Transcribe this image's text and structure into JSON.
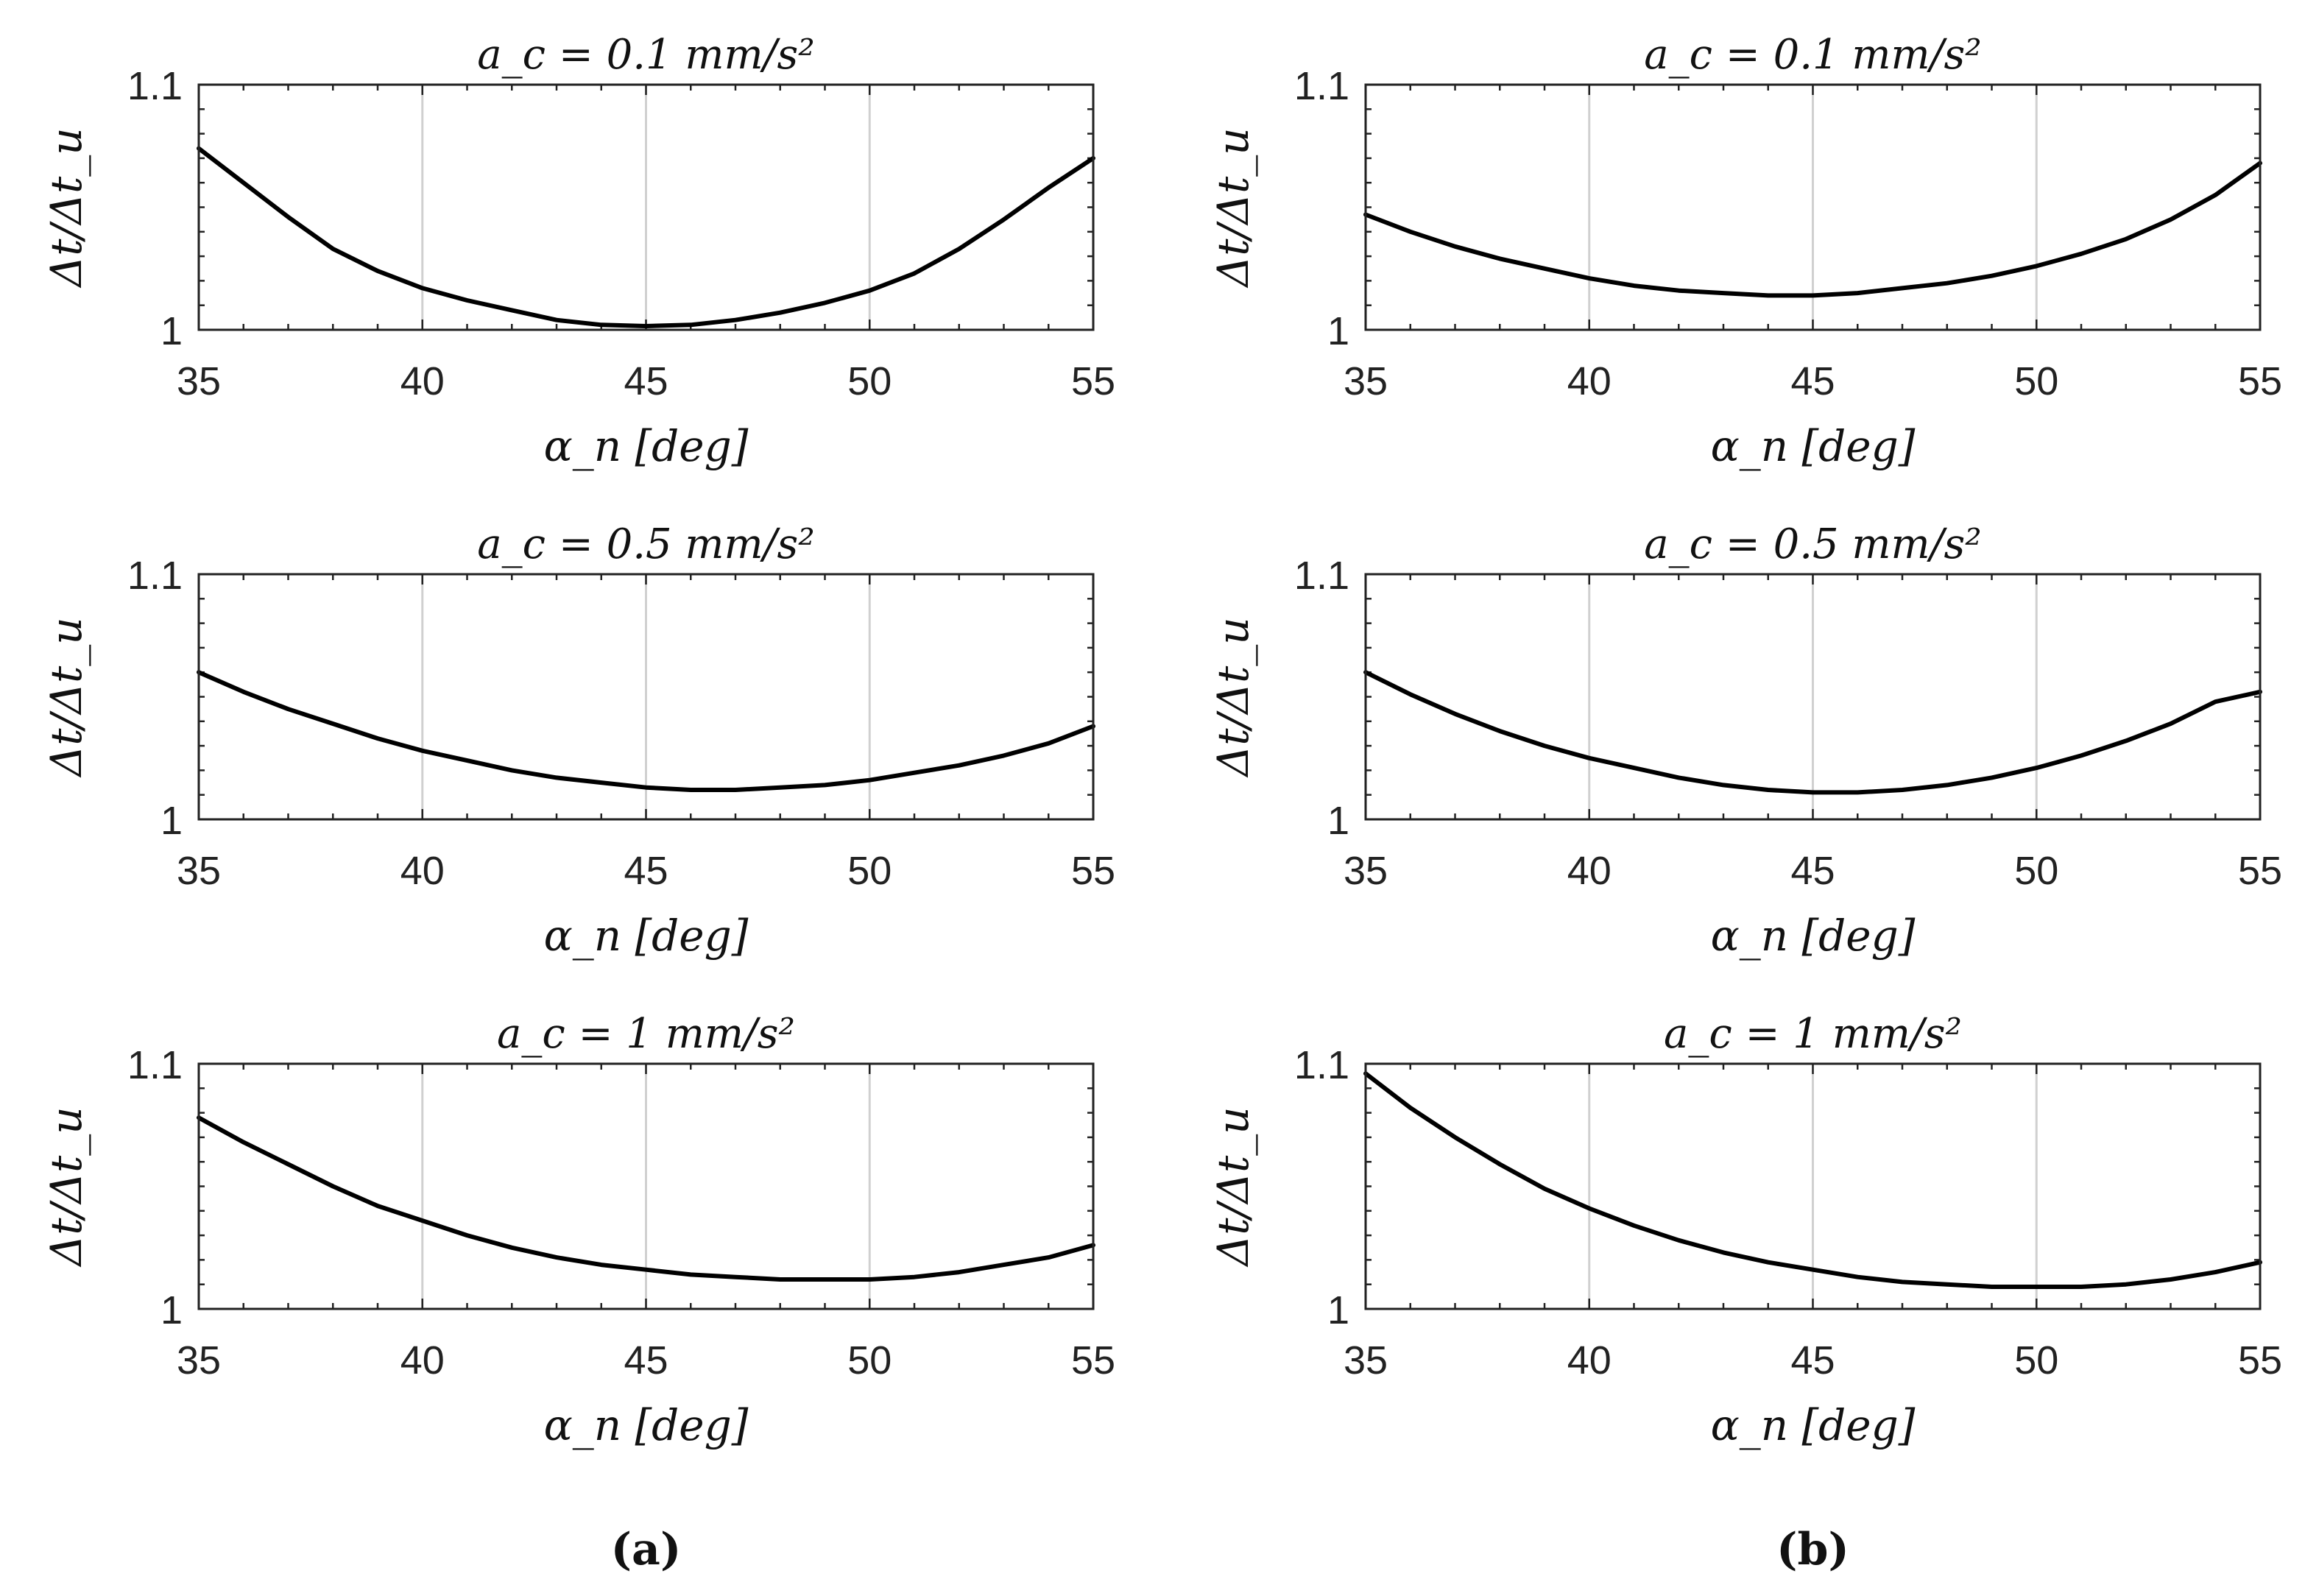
{
  "chart_data": [
    {
      "type": "line",
      "column": "a",
      "row": 0,
      "title": "a_c = 0.1 mm/s²",
      "xlabel": "α_n [deg]",
      "ylabel": "Δt/Δt_u",
      "xlim": [
        35,
        55
      ],
      "ylim": [
        1,
        1.1
      ],
      "xticks": [
        35,
        40,
        45,
        50,
        55
      ],
      "yticks": [
        1,
        1.1
      ],
      "grid": "x",
      "series": [
        {
          "name": "a",
          "x": [
            35,
            37,
            38,
            39,
            40,
            41,
            42,
            43,
            44,
            45,
            46,
            47,
            48,
            49,
            50,
            51,
            52,
            53,
            54,
            55
          ],
          "y": [
            1.074,
            1.046,
            1.033,
            1.024,
            1.017,
            1.012,
            1.008,
            1.004,
            1.002,
            1.0015,
            1.002,
            1.004,
            1.007,
            1.011,
            1.016,
            1.023,
            1.033,
            1.045,
            1.058,
            1.07
          ]
        }
      ]
    },
    {
      "type": "line",
      "column": "a",
      "row": 1,
      "title": "a_c = 0.5 mm/s²",
      "xlabel": "α_n [deg]",
      "ylabel": "Δt/Δt_u",
      "xlim": [
        35,
        55
      ],
      "ylim": [
        1,
        1.1
      ],
      "xticks": [
        35,
        40,
        45,
        50,
        55
      ],
      "yticks": [
        1,
        1.1
      ],
      "grid": "x",
      "series": [
        {
          "name": "a",
          "x": [
            35,
            36,
            37,
            38,
            39,
            40,
            41,
            42,
            43,
            44,
            45,
            46,
            47,
            48,
            49,
            50,
            51,
            52,
            53,
            54,
            55
          ],
          "y": [
            1.06,
            1.052,
            1.045,
            1.039,
            1.033,
            1.028,
            1.024,
            1.02,
            1.017,
            1.015,
            1.013,
            1.012,
            1.012,
            1.013,
            1.014,
            1.016,
            1.019,
            1.022,
            1.026,
            1.031,
            1.038
          ]
        }
      ]
    },
    {
      "type": "line",
      "column": "a",
      "row": 2,
      "title": "a_c = 1 mm/s²",
      "xlabel": "α_n [deg]",
      "ylabel": "Δt/Δt_u",
      "xlim": [
        35,
        55
      ],
      "ylim": [
        1,
        1.1
      ],
      "xticks": [
        35,
        40,
        45,
        50,
        55
      ],
      "yticks": [
        1,
        1.1
      ],
      "grid": "x",
      "series": [
        {
          "name": "a",
          "x": [
            35,
            36,
            37,
            38,
            39,
            40,
            41,
            42,
            43,
            44,
            45,
            46,
            47,
            48,
            49,
            50,
            51,
            52,
            53,
            54,
            55
          ],
          "y": [
            1.078,
            1.068,
            1.059,
            1.05,
            1.042,
            1.036,
            1.03,
            1.025,
            1.021,
            1.018,
            1.016,
            1.014,
            1.013,
            1.012,
            1.012,
            1.012,
            1.013,
            1.015,
            1.018,
            1.021,
            1.026
          ]
        }
      ]
    },
    {
      "type": "line",
      "column": "b",
      "row": 0,
      "title": "a_c = 0.1 mm/s²",
      "xlabel": "α_n [deg]",
      "ylabel": "Δt/Δt_u",
      "xlim": [
        35,
        55
      ],
      "ylim": [
        1,
        1.1
      ],
      "xticks": [
        35,
        40,
        45,
        50,
        55
      ],
      "yticks": [
        1,
        1.1
      ],
      "grid": "x",
      "series": [
        {
          "name": "b",
          "x": [
            35,
            36,
            37,
            38,
            39,
            40,
            41,
            42,
            43,
            44,
            45,
            46,
            47,
            48,
            49,
            50,
            51,
            52,
            53,
            54,
            55
          ],
          "y": [
            1.047,
            1.04,
            1.034,
            1.029,
            1.025,
            1.021,
            1.018,
            1.016,
            1.015,
            1.014,
            1.014,
            1.015,
            1.017,
            1.019,
            1.022,
            1.026,
            1.031,
            1.037,
            1.045,
            1.055,
            1.068
          ]
        }
      ]
    },
    {
      "type": "line",
      "column": "b",
      "row": 1,
      "title": "a_c = 0.5 mm/s²",
      "xlabel": "α_n [deg]",
      "ylabel": "Δt/Δt_u",
      "xlim": [
        35,
        55
      ],
      "ylim": [
        1,
        1.1
      ],
      "xticks": [
        35,
        40,
        45,
        50,
        55
      ],
      "yticks": [
        1,
        1.1
      ],
      "grid": "x",
      "series": [
        {
          "name": "b",
          "x": [
            35,
            36,
            37,
            38,
            39,
            40,
            41,
            42,
            43,
            44,
            45,
            46,
            47,
            48,
            49,
            50,
            51,
            52,
            53,
            54,
            55
          ],
          "y": [
            1.06,
            1.051,
            1.043,
            1.036,
            1.03,
            1.025,
            1.021,
            1.017,
            1.014,
            1.012,
            1.011,
            1.011,
            1.012,
            1.014,
            1.017,
            1.021,
            1.026,
            1.032,
            1.039,
            1.048,
            1.052
          ]
        }
      ]
    },
    {
      "type": "line",
      "column": "b",
      "row": 2,
      "title": "a_c = 1 mm/s²",
      "xlabel": "α_n [deg]",
      "ylabel": "Δt/Δt_u",
      "xlim": [
        35,
        55
      ],
      "ylim": [
        1,
        1.1
      ],
      "xticks": [
        35,
        40,
        45,
        50,
        55
      ],
      "yticks": [
        1,
        1.1
      ],
      "grid": "x",
      "series": [
        {
          "name": "b",
          "x": [
            35,
            36,
            37,
            38,
            39,
            40,
            41,
            42,
            43,
            44,
            45,
            46,
            47,
            48,
            49,
            50,
            51,
            52,
            53,
            54,
            55
          ],
          "y": [
            1.096,
            1.082,
            1.07,
            1.059,
            1.049,
            1.041,
            1.034,
            1.028,
            1.023,
            1.019,
            1.016,
            1.013,
            1.011,
            1.01,
            1.009,
            1.009,
            1.009,
            1.01,
            1.012,
            1.015,
            1.019
          ]
        }
      ]
    }
  ],
  "panel_labels": {
    "a": "(a)",
    "b": "(b)"
  }
}
